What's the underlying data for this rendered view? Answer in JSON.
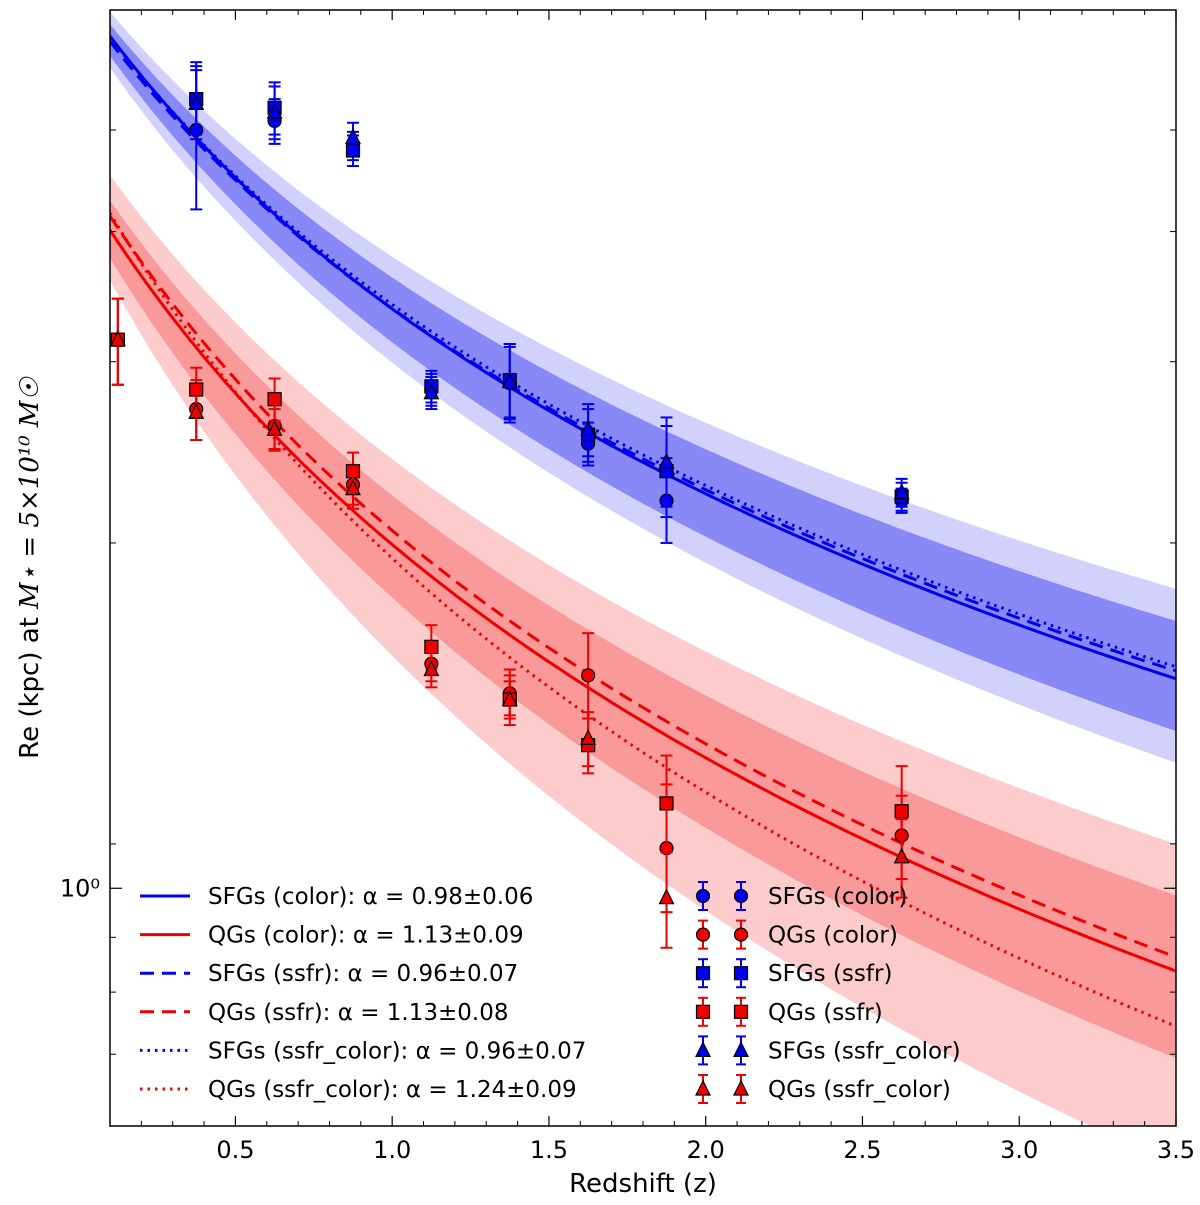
{
  "chart_data": {
    "type": "line+scatter",
    "xlabel": "Redshift (z)",
    "ylabel_prefix": "Re (kpc) at ",
    "ylabel_math": "M⋆ = 5×10¹⁰ M☉",
    "xscale": "linear",
    "yscale": "log",
    "xlim": [
      0.1,
      3.5
    ],
    "ylim": [
      0.6,
      6.6
    ],
    "xticks": [
      0.5,
      1.0,
      1.5,
      2.0,
      2.5,
      3.0,
      3.5
    ],
    "xtick_labels": [
      "0.5",
      "1.0",
      "1.5",
      "2.0",
      "2.5",
      "3.0",
      "3.5"
    ],
    "yticks": [
      1.0
    ],
    "ytick_labels": [
      "10⁰"
    ],
    "fits": [
      {
        "name": "SFGs (color)",
        "label": "SFGs (color): α = 0.98±0.06",
        "color": "#0000ee",
        "style": "solid",
        "A": 6.85,
        "alpha": 0.98
      },
      {
        "name": "QGs (color)",
        "label": "QGs (color): α = 1.13±0.09",
        "color": "#ee0000",
        "style": "solid",
        "A": 4.58,
        "alpha": 1.13
      },
      {
        "name": "SFGs (ssfr)",
        "label": "SFGs (ssfr): α = 0.96±0.07",
        "color": "#0000ee",
        "style": "dashed",
        "A": 6.76,
        "alpha": 0.96
      },
      {
        "name": "QGs (ssfr)",
        "label": "QGs (ssfr): α = 1.13±0.08",
        "color": "#ee0000",
        "style": "dashed",
        "A": 4.72,
        "alpha": 1.13
      },
      {
        "name": "SFGs (ssfr_color)",
        "label": "SFGs (ssfr_color): α = 0.96±0.07",
        "color": "#0000ee",
        "style": "dotted",
        "A": 6.82,
        "alpha": 0.96
      },
      {
        "name": "QGs (ssfr_color)",
        "label": "QGs (ssfr_color): α = 1.24±0.09",
        "color": "#ee0000",
        "style": "dotted",
        "A": 4.8,
        "alpha": 1.24
      }
    ],
    "bands": [
      {
        "group": "SFGs",
        "color": "#0000ee",
        "A_hi": 7.15,
        "alpha_hi": 0.88,
        "A_lo": 6.45,
        "alpha_lo": 1.06,
        "opacity": 0.18
      },
      {
        "group": "SFGs",
        "color": "#0000ee",
        "A_hi": 6.98,
        "alpha_hi": 0.91,
        "A_lo": 6.6,
        "alpha_lo": 1.03,
        "opacity": 0.35
      },
      {
        "group": "QGs",
        "color": "#ee0000",
        "A_hi": 5.1,
        "alpha_hi": 1.02,
        "A_lo": 4.2,
        "alpha_lo": 1.35,
        "opacity": 0.2
      },
      {
        "group": "QGs",
        "color": "#ee0000",
        "A_hi": 4.85,
        "alpha_hi": 1.06,
        "A_lo": 4.35,
        "alpha_lo": 1.22,
        "opacity": 0.25
      }
    ],
    "points": [
      {
        "name": "SFGs (color)",
        "color": "#0000ee",
        "marker": "circle",
        "data": [
          {
            "x": 0.375,
            "y": 5.1,
            "lo": 4.3,
            "hi": 5.9
          },
          {
            "x": 0.625,
            "y": 5.2,
            "lo": 4.95,
            "hi": 5.45
          },
          {
            "x": 0.875,
            "y": 4.92,
            "lo": 4.78,
            "hi": 5.08
          },
          {
            "x": 1.125,
            "y": 2.92,
            "lo": 2.82,
            "hi": 3.02
          },
          {
            "x": 1.375,
            "y": 2.96,
            "lo": 2.72,
            "hi": 3.22
          },
          {
            "x": 1.625,
            "y": 2.6,
            "lo": 2.48,
            "hi": 2.72
          },
          {
            "x": 1.875,
            "y": 2.3,
            "lo": 2.1,
            "hi": 2.52
          },
          {
            "x": 2.625,
            "y": 2.3,
            "lo": 2.24,
            "hi": 2.36
          }
        ]
      },
      {
        "name": "QGs (color)",
        "color": "#ee0000",
        "marker": "circle",
        "data": [
          {
            "x": 0.125,
            "y": 3.25,
            "lo": 2.95,
            "hi": 3.55
          },
          {
            "x": 0.375,
            "y": 2.8,
            "lo": 2.62,
            "hi": 2.98
          },
          {
            "x": 0.625,
            "y": 2.7,
            "lo": 2.57,
            "hi": 2.83
          },
          {
            "x": 0.875,
            "y": 2.38,
            "lo": 2.28,
            "hi": 2.48
          },
          {
            "x": 1.125,
            "y": 1.62,
            "lo": 1.56,
            "hi": 1.68
          },
          {
            "x": 1.375,
            "y": 1.52,
            "lo": 1.45,
            "hi": 1.6
          },
          {
            "x": 1.625,
            "y": 1.58,
            "lo": 1.44,
            "hi": 1.73
          },
          {
            "x": 1.875,
            "y": 1.09,
            "lo": 0.95,
            "hi": 1.25
          },
          {
            "x": 2.625,
            "y": 1.12,
            "lo": 1.02,
            "hi": 1.22
          }
        ]
      },
      {
        "name": "SFGs (ssfr)",
        "color": "#0000ee",
        "marker": "square",
        "data": [
          {
            "x": 0.375,
            "y": 5.45,
            "lo": 5.05,
            "hi": 5.85
          },
          {
            "x": 0.625,
            "y": 5.35,
            "lo": 5.05,
            "hi": 5.65
          },
          {
            "x": 0.875,
            "y": 4.88,
            "lo": 4.72,
            "hi": 5.04
          },
          {
            "x": 1.125,
            "y": 2.94,
            "lo": 2.84,
            "hi": 3.04
          },
          {
            "x": 1.375,
            "y": 2.98,
            "lo": 2.75,
            "hi": 3.22
          },
          {
            "x": 1.625,
            "y": 2.65,
            "lo": 2.5,
            "hi": 2.8
          },
          {
            "x": 1.875,
            "y": 2.45,
            "lo": 2.22,
            "hi": 2.7
          },
          {
            "x": 2.625,
            "y": 2.32,
            "lo": 2.25,
            "hi": 2.39
          }
        ]
      },
      {
        "name": "QGs (ssfr)",
        "color": "#ee0000",
        "marker": "square",
        "data": [
          {
            "x": 0.125,
            "y": 3.25,
            "lo": 2.95,
            "hi": 3.55
          },
          {
            "x": 0.375,
            "y": 2.92,
            "lo": 2.78,
            "hi": 3.06
          },
          {
            "x": 0.625,
            "y": 2.86,
            "lo": 2.73,
            "hi": 2.99
          },
          {
            "x": 0.875,
            "y": 2.45,
            "lo": 2.35,
            "hi": 2.55
          },
          {
            "x": 1.125,
            "y": 1.68,
            "lo": 1.6,
            "hi": 1.76
          },
          {
            "x": 1.375,
            "y": 1.5,
            "lo": 1.42,
            "hi": 1.58
          },
          {
            "x": 1.625,
            "y": 1.36,
            "lo": 1.28,
            "hi": 1.44
          },
          {
            "x": 1.875,
            "y": 1.2,
            "lo": 1.08,
            "hi": 1.33
          },
          {
            "x": 2.625,
            "y": 1.18,
            "lo": 1.06,
            "hi": 1.3
          }
        ]
      },
      {
        "name": "SFGs (ssfr_color)",
        "color": "#0000ee",
        "marker": "triangle",
        "data": [
          {
            "x": 0.375,
            "y": 5.4,
            "lo": 5.0,
            "hi": 5.8
          },
          {
            "x": 0.625,
            "y": 5.3,
            "lo": 5.0,
            "hi": 5.6
          },
          {
            "x": 0.875,
            "y": 5.02,
            "lo": 4.86,
            "hi": 5.18
          },
          {
            "x": 1.125,
            "y": 2.9,
            "lo": 2.8,
            "hi": 3.0
          },
          {
            "x": 1.375,
            "y": 2.97,
            "lo": 2.74,
            "hi": 3.2
          },
          {
            "x": 1.625,
            "y": 2.68,
            "lo": 2.53,
            "hi": 2.83
          },
          {
            "x": 1.875,
            "y": 2.5,
            "lo": 2.27,
            "hi": 2.75
          },
          {
            "x": 2.625,
            "y": 2.34,
            "lo": 2.27,
            "hi": 2.41
          }
        ]
      },
      {
        "name": "QGs (ssfr_color)",
        "color": "#ee0000",
        "marker": "triangle",
        "data": [
          {
            "x": 0.125,
            "y": 3.25,
            "lo": 2.95,
            "hi": 3.55
          },
          {
            "x": 0.375,
            "y": 2.78,
            "lo": 2.62,
            "hi": 2.94
          },
          {
            "x": 0.625,
            "y": 2.68,
            "lo": 2.56,
            "hi": 2.8
          },
          {
            "x": 0.875,
            "y": 2.36,
            "lo": 2.26,
            "hi": 2.46
          },
          {
            "x": 1.125,
            "y": 1.6,
            "lo": 1.54,
            "hi": 1.66
          },
          {
            "x": 1.375,
            "y": 1.5,
            "lo": 1.44,
            "hi": 1.56
          },
          {
            "x": 1.625,
            "y": 1.38,
            "lo": 1.3,
            "hi": 1.46
          },
          {
            "x": 1.875,
            "y": 0.98,
            "lo": 0.88,
            "hi": 1.08
          },
          {
            "x": 2.625,
            "y": 1.07,
            "lo": 0.98,
            "hi": 1.16
          }
        ]
      }
    ],
    "legend_left": [
      {
        "label": "SFGs (color): α = 0.98±0.06",
        "color": "#0000ee",
        "style": "solid"
      },
      {
        "label": "QGs (color): α = 1.13±0.09",
        "color": "#ee0000",
        "style": "solid"
      },
      {
        "label": "SFGs (ssfr): α = 0.96±0.07",
        "color": "#0000ee",
        "style": "dashed"
      },
      {
        "label": "QGs (ssfr): α = 1.13±0.08",
        "color": "#ee0000",
        "style": "dashed"
      },
      {
        "label": "SFGs (ssfr_color): α = 0.96±0.07",
        "color": "#0000ee",
        "style": "dotted"
      },
      {
        "label": "QGs (ssfr_color): α = 1.24±0.09",
        "color": "#ee0000",
        "style": "dotted"
      }
    ],
    "legend_right": [
      {
        "label": "SFGs (color)",
        "color": "#0000ee",
        "marker": "circle"
      },
      {
        "label": "QGs (color)",
        "color": "#ee0000",
        "marker": "circle"
      },
      {
        "label": "SFGs (ssfr)",
        "color": "#0000ee",
        "marker": "square"
      },
      {
        "label": "QGs (ssfr)",
        "color": "#ee0000",
        "marker": "square"
      },
      {
        "label": "SFGs (ssfr_color)",
        "color": "#0000ee",
        "marker": "triangle"
      },
      {
        "label": "QGs (ssfr_color)",
        "color": "#ee0000",
        "marker": "triangle"
      }
    ],
    "legend_placement": "lower-left"
  }
}
